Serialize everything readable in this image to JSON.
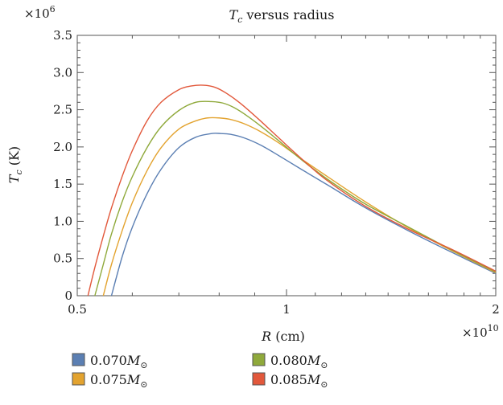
{
  "chart_data": {
    "type": "line",
    "title": {
      "symbol": "T",
      "sub": "c",
      "text": " versus radius"
    },
    "xlabel": {
      "symbol": "R",
      "unit": " (cm)"
    },
    "ylabel": {
      "symbol": "T",
      "sub": "c",
      "unit": " (K)"
    },
    "x_multiplier": {
      "base": "×10",
      "exp": "10"
    },
    "y_multiplier": {
      "base": "×10",
      "exp": "6"
    },
    "xlim": [
      0.5,
      2.0
    ],
    "ylim": [
      0,
      3.5
    ],
    "x_scale": "log",
    "x_ticks": [
      0.5,
      1,
      2
    ],
    "x_tick_labels": [
      "0.5",
      "1",
      "2"
    ],
    "y_ticks": [
      0,
      0.5,
      1.0,
      1.5,
      2.0,
      2.5,
      3.0,
      3.5
    ],
    "y_tick_labels": [
      "0",
      "0.5",
      "1.0",
      "1.5",
      "2.0",
      "2.5",
      "3.0",
      "3.5"
    ],
    "legend_position": "bottom",
    "series": [
      {
        "name": "0.070",
        "symbol": "M",
        "sub": "⊙",
        "color": "#5b7fb3",
        "x": [
          0.56,
          0.58,
          0.6,
          0.63,
          0.66,
          0.7,
          0.74,
          0.78,
          0.805,
          0.83,
          0.87,
          0.92,
          0.98,
          1.05,
          1.15,
          1.3,
          1.5,
          1.75,
          2.0
        ],
        "y": [
          0.0,
          0.52,
          0.92,
          1.37,
          1.7,
          1.99,
          2.13,
          2.18,
          2.18,
          2.17,
          2.12,
          2.02,
          1.87,
          1.7,
          1.48,
          1.18,
          0.87,
          0.56,
          0.3
        ]
      },
      {
        "name": "0.075",
        "symbol": "M",
        "sub": "⊙",
        "color": "#e3a32f",
        "x": [
          0.545,
          0.56,
          0.58,
          0.6,
          0.63,
          0.66,
          0.7,
          0.74,
          0.77,
          0.8,
          0.83,
          0.87,
          0.92,
          0.98,
          1.05,
          1.15,
          1.3,
          1.5,
          1.75,
          2.0
        ],
        "y": [
          0.0,
          0.42,
          0.87,
          1.25,
          1.68,
          1.99,
          2.24,
          2.35,
          2.39,
          2.39,
          2.37,
          2.31,
          2.2,
          2.04,
          1.84,
          1.59,
          1.26,
          0.91,
          0.58,
          0.31
        ]
      },
      {
        "name": "0.080",
        "symbol": "M",
        "sub": "⊙",
        "color": "#8fa93b",
        "x": [
          0.53,
          0.545,
          0.56,
          0.58,
          0.6,
          0.63,
          0.66,
          0.7,
          0.74,
          0.78,
          0.81,
          0.84,
          0.88,
          0.93,
          0.99,
          1.06,
          1.16,
          1.3,
          1.5,
          1.75,
          2.0
        ],
        "y": [
          0.0,
          0.42,
          0.83,
          1.26,
          1.6,
          1.99,
          2.27,
          2.49,
          2.6,
          2.61,
          2.59,
          2.53,
          2.41,
          2.24,
          2.03,
          1.8,
          1.53,
          1.23,
          0.92,
          0.59,
          0.32
        ]
      },
      {
        "name": "0.085",
        "symbol": "M",
        "sub": "⊙",
        "color": "#e2583b",
        "x": [
          0.518,
          0.53,
          0.545,
          0.56,
          0.58,
          0.6,
          0.63,
          0.66,
          0.7,
          0.73,
          0.76,
          0.79,
          0.82,
          0.86,
          0.91,
          0.97,
          1.04,
          1.14,
          1.3,
          1.5,
          1.75,
          2.0
        ],
        "y": [
          0.0,
          0.38,
          0.8,
          1.18,
          1.6,
          1.95,
          2.35,
          2.6,
          2.77,
          2.82,
          2.83,
          2.8,
          2.72,
          2.58,
          2.38,
          2.14,
          1.88,
          1.56,
          1.2,
          0.89,
          0.6,
          0.33
        ]
      }
    ]
  }
}
